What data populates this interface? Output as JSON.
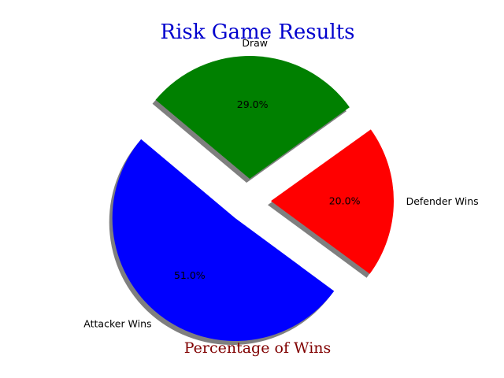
{
  "chart_data": {
    "type": "pie",
    "title": "Risk Game Results",
    "xlabel": "Percentage of Wins",
    "title_color": "#0000cd",
    "xlabel_color": "#800000",
    "categories": [
      "Attacker Wins",
      "Defender Wins",
      "Draw"
    ],
    "values": [
      51.0,
      20.0,
      29.0
    ],
    "value_labels": [
      "51.0%",
      "20.0%",
      "29.0%"
    ],
    "colors": [
      "#0000ff",
      "#ff0000",
      "#008000"
    ],
    "exploded": [
      true,
      true,
      true
    ],
    "shadow": true,
    "start_angle_deg": 140,
    "direction": "counterclockwise"
  }
}
